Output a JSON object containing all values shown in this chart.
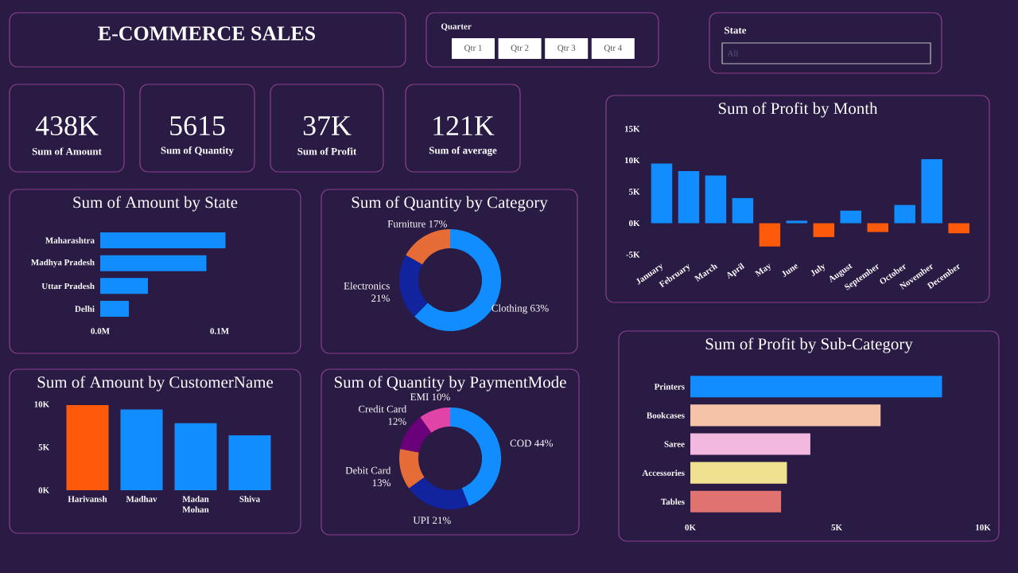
{
  "chart_data": [
    {
      "type": "other",
      "title": "E-COMMERCE SALES",
      "annotations": [
        "Quarter",
        "Qtr 1",
        "Qtr 2",
        "Qtr 3",
        "Qtr 4",
        "State",
        "All"
      ]
    },
    {
      "type": "other",
      "annotations": [
        "438K",
        "Sum of Amount",
        "5615",
        "Sum of Quantity",
        "37K",
        "Sum of Profit",
        "121K",
        "Sum of average"
      ]
    },
    {
      "type": "bar",
      "title": "Sum of Profit by Month",
      "categories": [
        "January",
        "February",
        "March",
        "April",
        "May",
        "June",
        "July",
        "August",
        "September",
        "October",
        "November",
        "December"
      ],
      "values": [
        9500,
        8300,
        7600,
        4000,
        -3700,
        400,
        -2200,
        2000,
        -1400,
        2900,
        10200,
        -1600
      ],
      "colors": [
        "#118dff",
        "#118dff",
        "#118dff",
        "#118dff",
        "#ff5a0a",
        "#118dff",
        "#ff5a0a",
        "#118dff",
        "#ff5a0a",
        "#118dff",
        "#118dff",
        "#ff5a0a"
      ],
      "ylim": [
        -5000,
        15000
      ],
      "yticks": [
        {
          "value": -5000,
          "label": "-5K"
        },
        {
          "value": 0,
          "label": "0K"
        },
        {
          "value": 5000,
          "label": "5K"
        },
        {
          "value": 10000,
          "label": "10K"
        },
        {
          "value": 15000,
          "label": "15K"
        }
      ]
    },
    {
      "type": "bar",
      "orientation": "horizontal",
      "title": "Sum of Amount by State",
      "categories": [
        "Maharashtra",
        "Madhya Pradesh",
        "Uttar Pradesh",
        "Delhi"
      ],
      "values": [
        105000,
        89000,
        40000,
        24000
      ],
      "color": "#118dff",
      "xlim": [
        0,
        110000
      ],
      "xticks": [
        {
          "value": 0,
          "label": "0.0M"
        },
        {
          "value": 100000,
          "label": "0.1M"
        }
      ]
    },
    {
      "type": "donut",
      "title": "Sum of Quantity by Category",
      "categories": [
        "Clothing",
        "Electronics",
        "Furniture"
      ],
      "values": [
        63,
        21,
        17
      ],
      "value_labels": [
        "63%",
        "21%",
        "17%"
      ],
      "colors": [
        "#118dff",
        "#12239e",
        "#e66c37"
      ]
    },
    {
      "type": "bar",
      "title": "Sum of Amount by CustomerName",
      "categories": [
        "Harivansh",
        "Madhav",
        "Madan Mohan",
        "Shiva"
      ],
      "values": [
        9900,
        9400,
        7800,
        6400
      ],
      "colors": [
        "#ff5a0a",
        "#118dff",
        "#118dff",
        "#118dff"
      ],
      "ylim": [
        0,
        10000
      ],
      "yticks": [
        {
          "value": 0,
          "label": "0K"
        },
        {
          "value": 5000,
          "label": "5K"
        },
        {
          "value": 10000,
          "label": "10K"
        }
      ]
    },
    {
      "type": "donut",
      "title": "Sum of Quantity by PaymentMode",
      "categories": [
        "COD",
        "UPI",
        "Debit Card",
        "Credit Card",
        "EMI"
      ],
      "values": [
        44,
        21,
        13,
        12,
        10
      ],
      "value_labels": [
        "44%",
        "21%",
        "13%",
        "12%",
        "10%"
      ],
      "colors": [
        "#118dff",
        "#12239e",
        "#e66c37",
        "#6b007b",
        "#e044a7"
      ]
    },
    {
      "type": "bar",
      "orientation": "horizontal",
      "title": "Sum of Profit by Sub-Category",
      "categories": [
        "Printers",
        "Bookcases",
        "Saree",
        "Accessories",
        "Tables"
      ],
      "values": [
        8600,
        6500,
        4100,
        3300,
        3100
      ],
      "colors": [
        "#118dff",
        "#f4c3a8",
        "#f2b8e0",
        "#f0e190",
        "#e07272"
      ],
      "xlim": [
        0,
        10000
      ],
      "xticks": [
        {
          "value": 0,
          "label": "0K"
        },
        {
          "value": 5000,
          "label": "5K"
        },
        {
          "value": 10000,
          "label": "10K"
        }
      ]
    }
  ]
}
